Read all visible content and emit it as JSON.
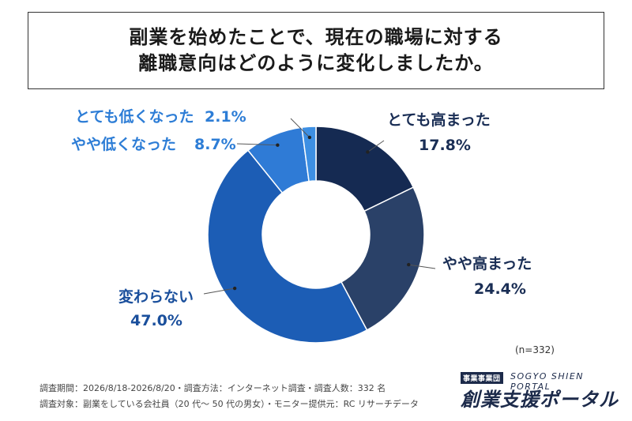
{
  "title": {
    "line1": "副業を始めたことで、現在の職場に対する",
    "line2": "離職意向はどのように変化しましたか。"
  },
  "chart_data": {
    "type": "pie",
    "donut": true,
    "title": "副業を始めたことで、現在の職場に対する離職意向はどのように変化しましたか。",
    "categories": [
      "とても高まった",
      "やや高まった",
      "変わらない",
      "やや低くなった",
      "とても低くなった"
    ],
    "values": [
      17.8,
      24.4,
      47.0,
      8.7,
      2.1
    ],
    "value_labels": [
      "17.8%",
      "24.4%",
      "47.0%",
      "8.7%",
      "2.1%"
    ],
    "colors": [
      "#152a52",
      "#2a4168",
      "#1c5db5",
      "#2f7bd6",
      "#3d8fe3"
    ],
    "label_colors": [
      "#1a2e55",
      "#1a2e55",
      "#1a4f9c",
      "#2d7dd6",
      "#2d7dd6"
    ],
    "start_angle_deg": 0,
    "direction": "clockwise",
    "sample_size": "(n=332)"
  },
  "footnotes": {
    "line1": "調査期間：2026/8/18-2026/8/20・調査方法：インターネット調査・調査人数：332 名",
    "line2": "調査対象：副業をしている会社員（20 代〜 50 代の男女）・モニター提供元：RC リサーチデータ"
  },
  "logo": {
    "badge": "事業事業団",
    "english": "SOGYO SHIEN PORTAL",
    "japanese": "創業支援ポータル"
  }
}
